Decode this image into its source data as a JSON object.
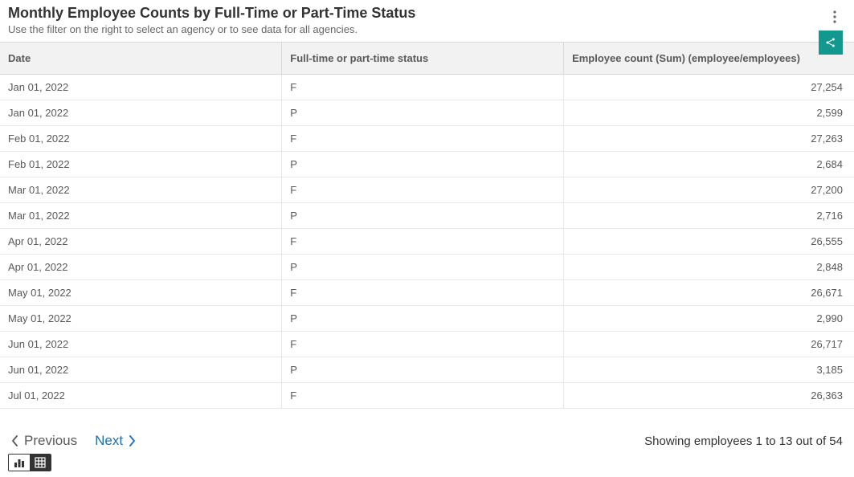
{
  "header": {
    "title": "Monthly Employee Counts by Full-Time or Part-Time Status",
    "subtitle": "Use the filter on the right to select an agency or to see data for all agencies."
  },
  "share_button_color": "#13988f",
  "table": {
    "columns": [
      "Date",
      "Full-time or part-time status",
      "Employee count (Sum) (employee/employees)"
    ],
    "rows": [
      [
        "Jan 01, 2022",
        "F",
        "27,254"
      ],
      [
        "Jan 01, 2022",
        "P",
        "2,599"
      ],
      [
        "Feb 01, 2022",
        "F",
        "27,263"
      ],
      [
        "Feb 01, 2022",
        "P",
        "2,684"
      ],
      [
        "Mar 01, 2022",
        "F",
        "27,200"
      ],
      [
        "Mar 01, 2022",
        "P",
        "2,716"
      ],
      [
        "Apr 01, 2022",
        "F",
        "26,555"
      ],
      [
        "Apr 01, 2022",
        "P",
        "2,848"
      ],
      [
        "May 01, 2022",
        "F",
        "26,671"
      ],
      [
        "May 01, 2022",
        "P",
        "2,990"
      ],
      [
        "Jun 01, 2022",
        "F",
        "26,717"
      ],
      [
        "Jun 01, 2022",
        "P",
        "3,185"
      ],
      [
        "Jul 01, 2022",
        "F",
        "26,363"
      ]
    ],
    "header_bg": "#f2f2f2",
    "border_color": "#d9d9d9",
    "row_border_color": "#e6e6e6",
    "text_color": "#595959"
  },
  "pager": {
    "previous": "Previous",
    "next": "Next",
    "previous_color": "#595959",
    "next_color": "#1a6fb5"
  },
  "showing": "Showing employees 1 to 13 out of 54",
  "view_toggle": {
    "active": "table"
  }
}
